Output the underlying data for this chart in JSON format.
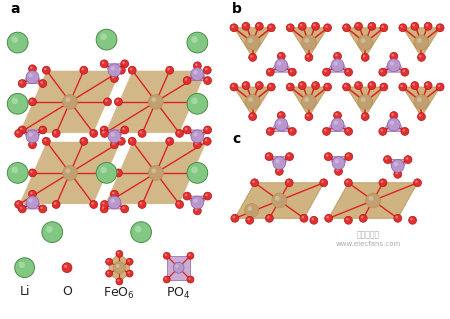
{
  "bg": "#ffffff",
  "li_color": "#82c882",
  "li_edge": "#4a8c4a",
  "o_color": "#e03030",
  "o_edge": "#bb1111",
  "feo_fc": "#c8a96e",
  "feo_ec": "#b89050",
  "po4_fc": "#c0a0cc",
  "po4_ec": "#9060a8",
  "fe_color": "#c0a070",
  "p_color": "#b898cc",
  "bond_color": "#dd2222",
  "label_a": "a",
  "label_b": "b",
  "label_c": "c",
  "li_r": 9.5,
  "o_r": 4.0,
  "fe_r": 7.5,
  "p_r": 6.5,
  "watermark1": "电子发烧友",
  "watermark2": "www.elecfans.com"
}
